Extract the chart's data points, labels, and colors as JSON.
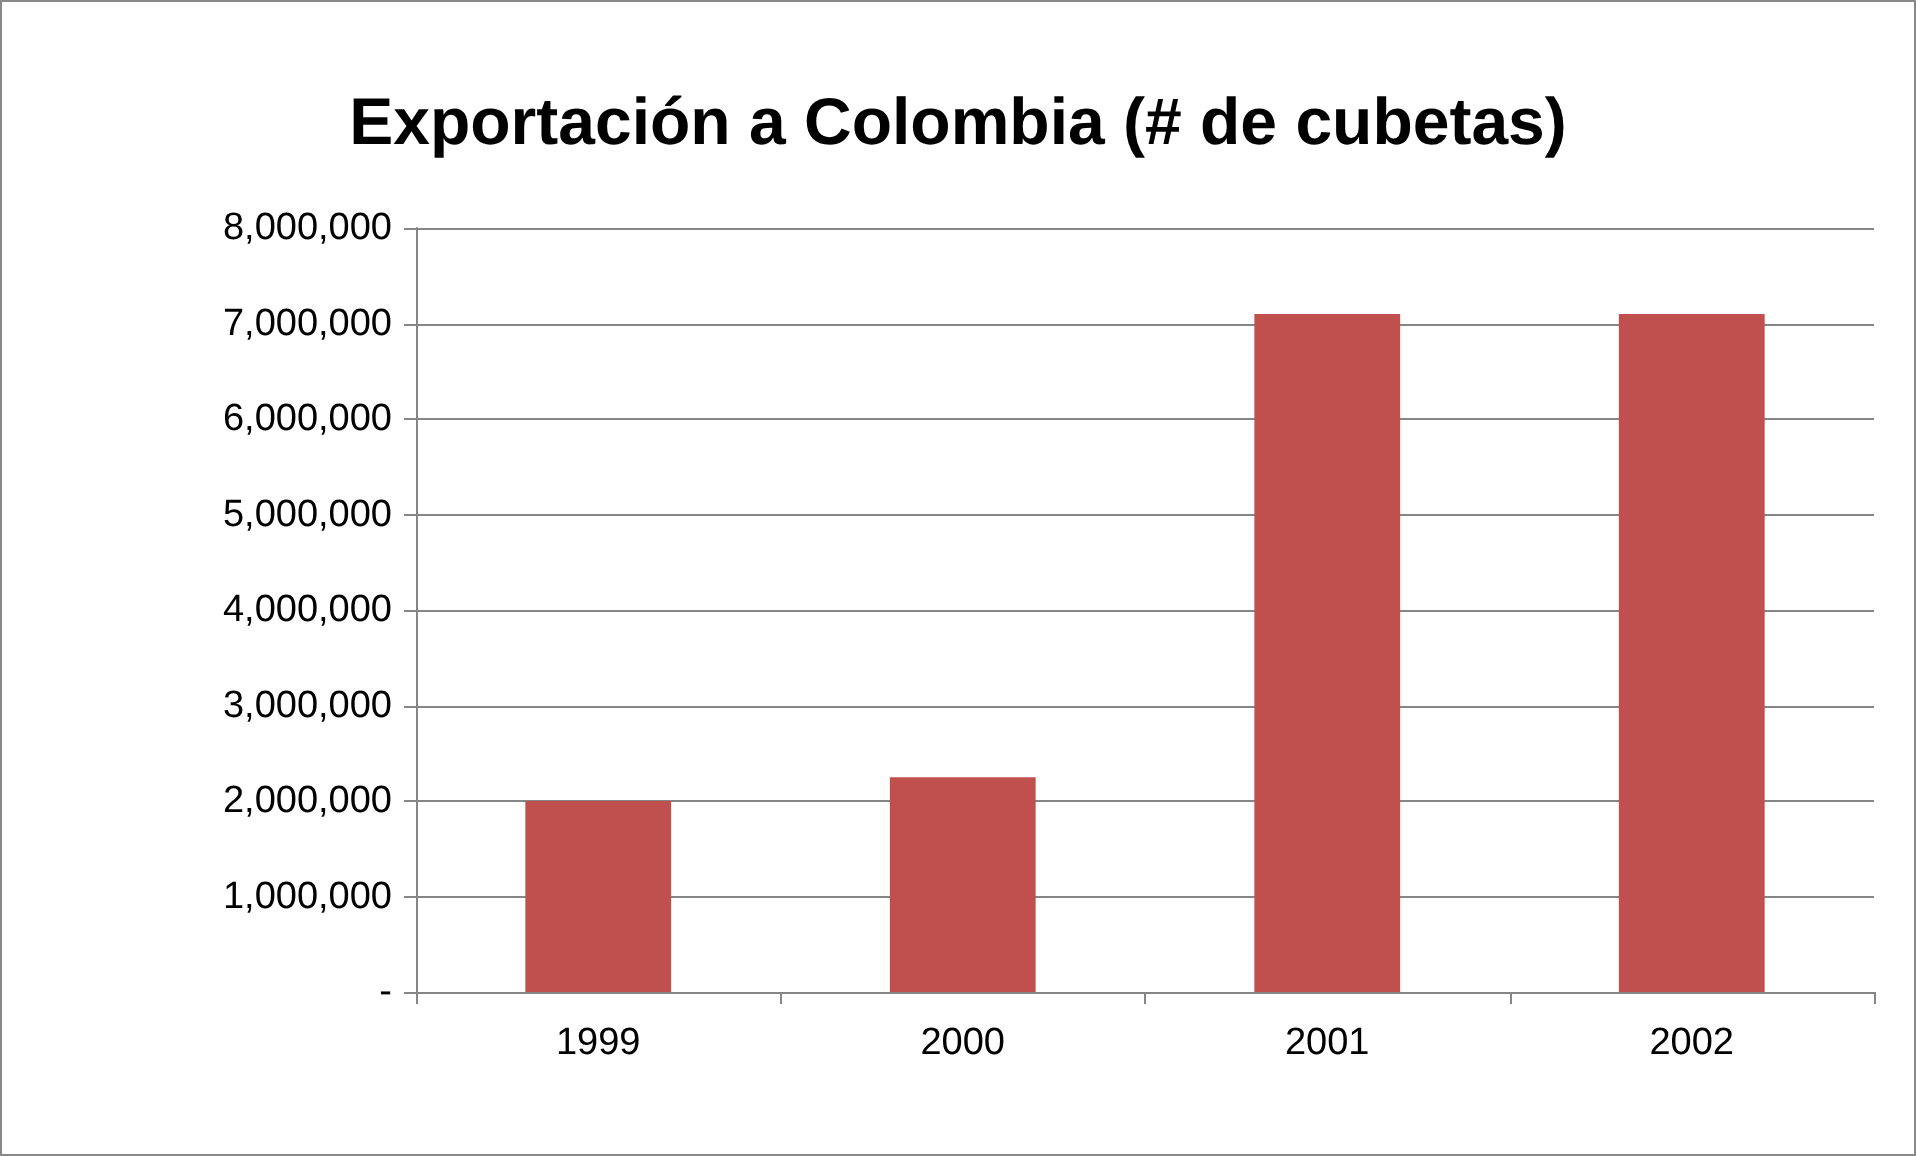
{
  "chart_data": {
    "type": "bar",
    "title": "Exportación a Colombia (# de cubetas)",
    "categories": [
      "1999",
      "2000",
      "2001",
      "2002"
    ],
    "values": [
      2000000,
      2250000,
      7100000,
      7100000
    ],
    "color": "#c0504d",
    "ylim": [
      0,
      8000000
    ],
    "yticks": [
      {
        "value": 0,
        "label": "-"
      },
      {
        "value": 1000000,
        "label": "1,000,000"
      },
      {
        "value": 2000000,
        "label": "2,000,000"
      },
      {
        "value": 3000000,
        "label": "3,000,000"
      },
      {
        "value": 4000000,
        "label": "4,000,000"
      },
      {
        "value": 5000000,
        "label": "5,000,000"
      },
      {
        "value": 6000000,
        "label": "6,000,000"
      },
      {
        "value": 7000000,
        "label": "7,000,000"
      },
      {
        "value": 8000000,
        "label": "8,000,000"
      }
    ],
    "grid": "y"
  }
}
